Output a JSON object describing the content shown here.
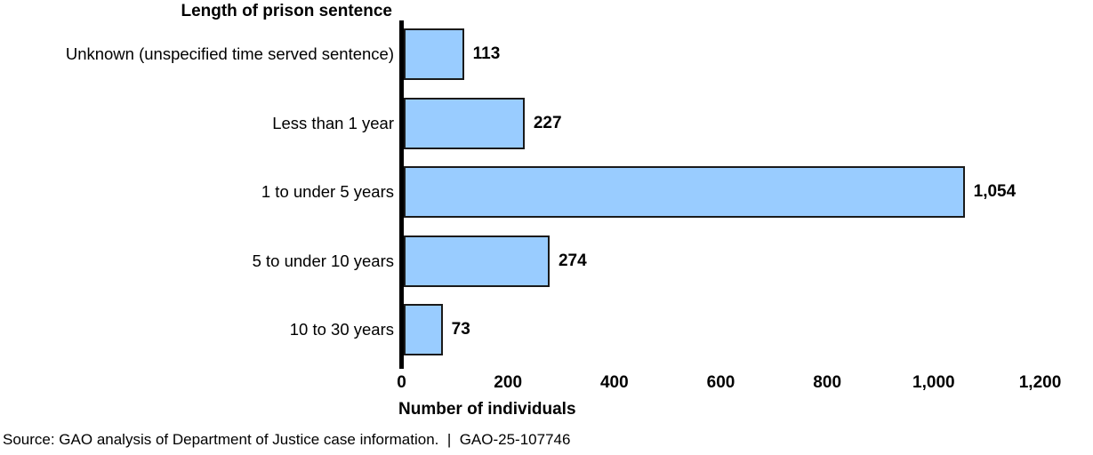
{
  "chart_data": {
    "type": "bar",
    "orientation": "horizontal",
    "title": "Length of prison sentence",
    "xlabel": "Number of individuals",
    "categories": [
      "Unknown (unspecified time served sentence)",
      "Less than 1 year",
      "1 to under 5 years",
      "5 to under 10 years",
      "10 to 30 years"
    ],
    "values": [
      113,
      227,
      1054,
      274,
      73
    ],
    "value_labels": [
      "113",
      "227",
      "1,054",
      "274",
      "73"
    ],
    "x_ticks": [
      0,
      200,
      400,
      600,
      800,
      1000,
      1200
    ],
    "x_tick_labels": [
      "0",
      "200",
      "400",
      "600",
      "800",
      "1,000",
      "1,200"
    ],
    "xlim": [
      0,
      1200
    ],
    "grid": false,
    "legend": null,
    "bar_fill": "#99CCFF",
    "bar_border": "#1a1a1a",
    "axis_color": "#000000"
  },
  "source_line": "Source: GAO analysis of Department of Justice case information.  |  GAO-25-107746"
}
